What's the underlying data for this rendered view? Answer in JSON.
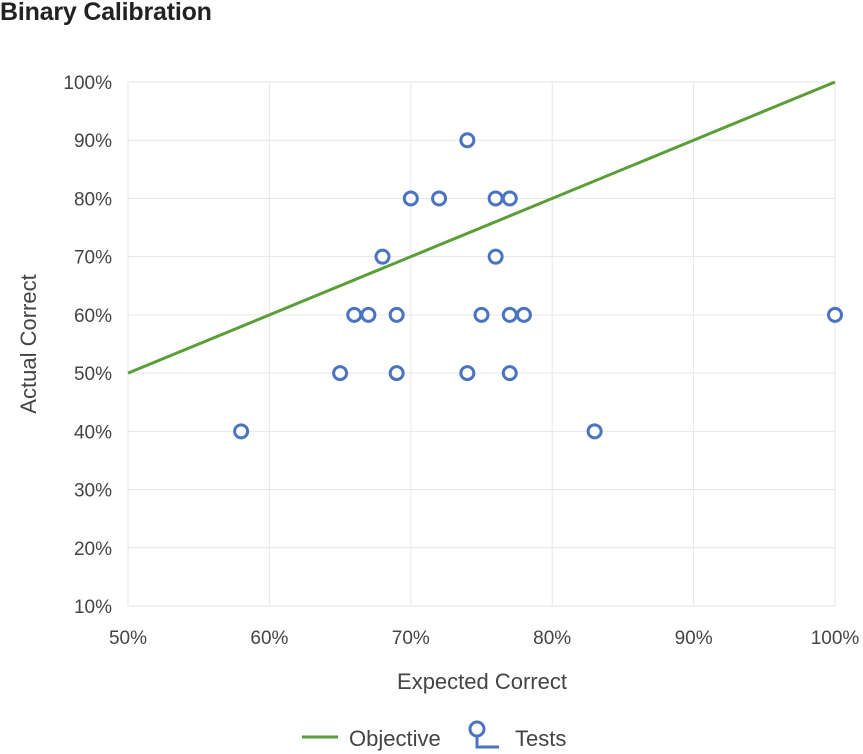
{
  "title": "Binary Calibration",
  "colors": {
    "objective": "#5a9e38",
    "tests": "#4a74c0"
  },
  "chart_data": {
    "type": "scatter",
    "title": "Binary Calibration",
    "xlabel": "Expected Correct",
    "ylabel": "Actual Correct",
    "xlim": [
      50,
      100
    ],
    "ylim": [
      10,
      100
    ],
    "x_ticks": [
      "50%",
      "60%",
      "70%",
      "80%",
      "90%",
      "100%"
    ],
    "y_ticks": [
      "10%",
      "20%",
      "30%",
      "40%",
      "50%",
      "60%",
      "70%",
      "80%",
      "90%",
      "100%"
    ],
    "grid": true,
    "legend_placement": "bottom",
    "series": [
      {
        "name": "Objective",
        "type": "line",
        "x": [
          50,
          100
        ],
        "y": [
          50,
          100
        ]
      },
      {
        "name": "Tests",
        "type": "scatter",
        "x": [
          74,
          70,
          72,
          76,
          77,
          68,
          76,
          66,
          67,
          69,
          75,
          77,
          78,
          100,
          65,
          69,
          74,
          77,
          58,
          83
        ],
        "y": [
          90,
          80,
          80,
          80,
          80,
          70,
          70,
          60,
          60,
          60,
          60,
          60,
          60,
          60,
          50,
          50,
          50,
          50,
          40,
          40
        ]
      }
    ]
  }
}
